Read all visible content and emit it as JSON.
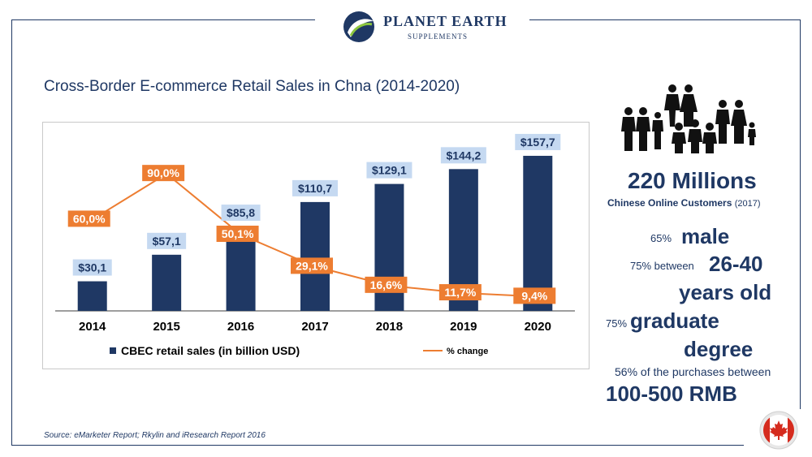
{
  "logo": {
    "title": "PLANET EARTH",
    "subtitle": "SUPPLEMENTS"
  },
  "slide_title": "Cross-Border E-commerce Retail Sales in Chna (2014-2020)",
  "source": "Source: eMarketer Report; Rkylin and iResearch Report 2016",
  "colors": {
    "bar": "#1f3864",
    "line": "#ed7d31",
    "bar_label_bg": "#c5d9f1",
    "line_label_bg": "#ed7d31"
  },
  "chart_data": {
    "type": "bar",
    "categories": [
      "2014",
      "2015",
      "2016",
      "2017",
      "2018",
      "2019",
      "2020"
    ],
    "series": [
      {
        "name": "CBEC retail sales (in billion USD)",
        "type": "bar",
        "values": [
          30.1,
          57.1,
          85.8,
          110.7,
          129.1,
          144.2,
          157.7
        ],
        "labels": [
          "$30,1",
          "$57,1",
          "$85,8",
          "$110,7",
          "$129,1",
          "$144,2",
          "$157,7"
        ]
      },
      {
        "name": "% change",
        "type": "line",
        "values": [
          60.0,
          90.0,
          50.1,
          29.1,
          16.6,
          11.7,
          9.4
        ],
        "labels": [
          "60,0%",
          "90,0%",
          "50,1%",
          "29,1%",
          "16,6%",
          "11,7%",
          "9,4%"
        ]
      }
    ],
    "ylim": [
      0,
      175
    ],
    "y2lim": [
      0,
      113
    ],
    "legend_position": "bottom",
    "grid": false
  },
  "stats": {
    "population": "220 Millions",
    "customers_label": "Chinese Online Customers",
    "customers_year": "(2017)",
    "male_pct": "65%",
    "male": "male",
    "age_pct": "75% between",
    "age_range": "26-40",
    "age_unit": "years old",
    "grad_pct": "75%",
    "grad_1": "graduate",
    "grad_2": "degree",
    "purchase_pct": "56% of the purchases between",
    "purchase_range": "100-500 RMB"
  }
}
